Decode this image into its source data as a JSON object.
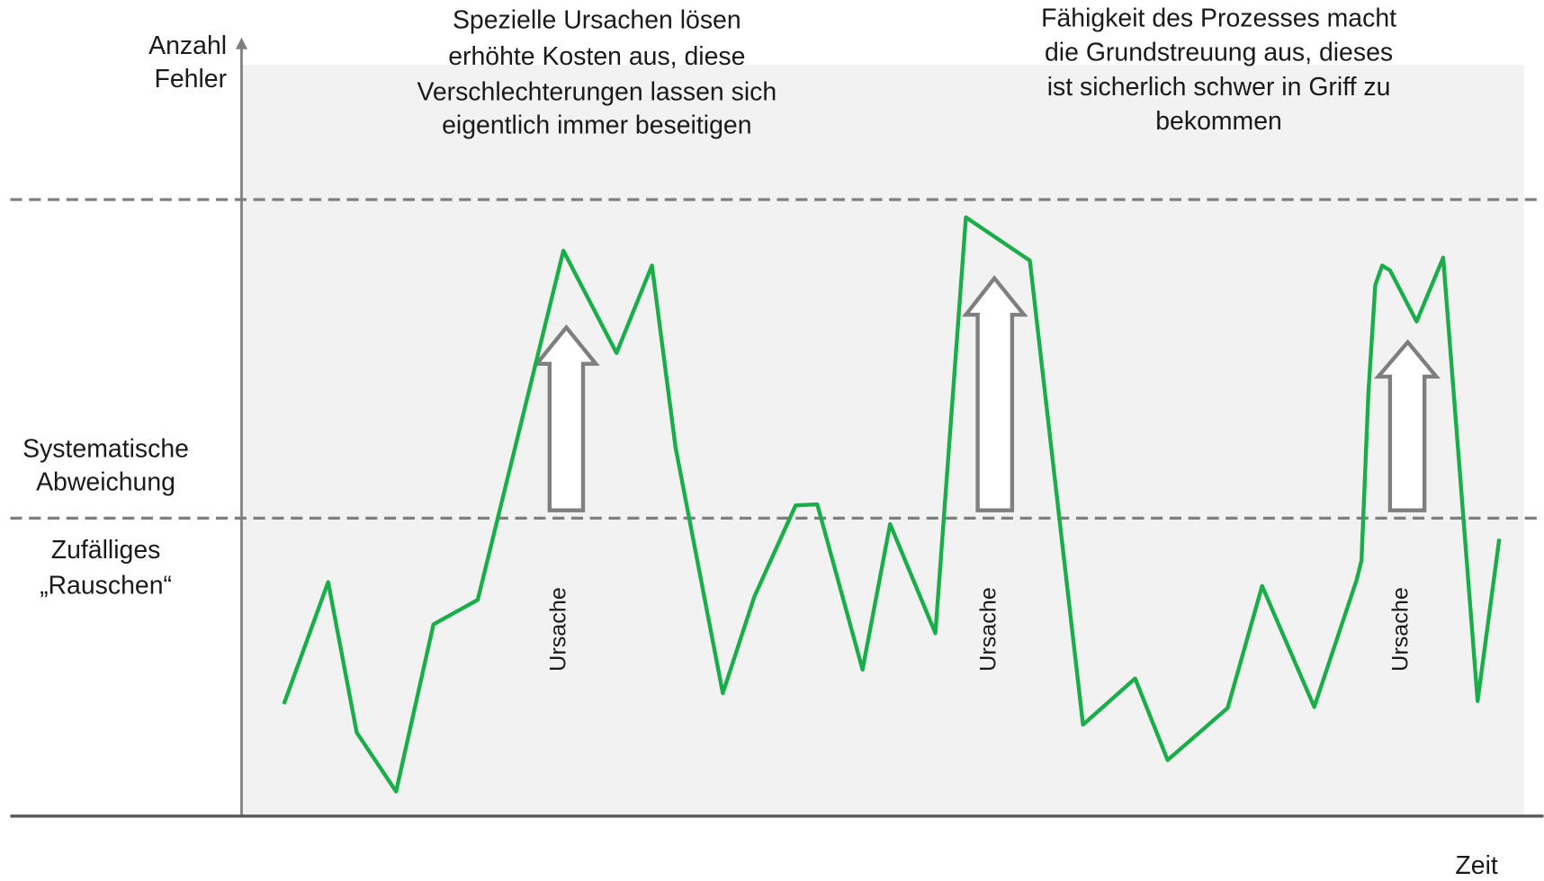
{
  "y_axis_label": [
    "Anzahl",
    "Fehler"
  ],
  "x_axis_label": "Zeit",
  "levels": {
    "systematic": [
      "Systematische",
      "Abweichung"
    ],
    "random": [
      "Zufälliges",
      "„Rauschen“"
    ]
  },
  "annotations": {
    "special_causes": [
      "Spezielle Ursachen lösen",
      "erhöhte Kosten aus, diese",
      "Verschlechterungen lassen sich",
      "eigentlich immer beseitigen"
    ],
    "capability": [
      "Fähigkeit des Prozesses macht",
      "die Grundstreuung aus, dieses",
      "ist sicherlich schwer in Griff zu",
      "bekommen"
    ]
  },
  "causes": [
    "Ursache",
    "Ursache",
    "Ursache"
  ]
}
